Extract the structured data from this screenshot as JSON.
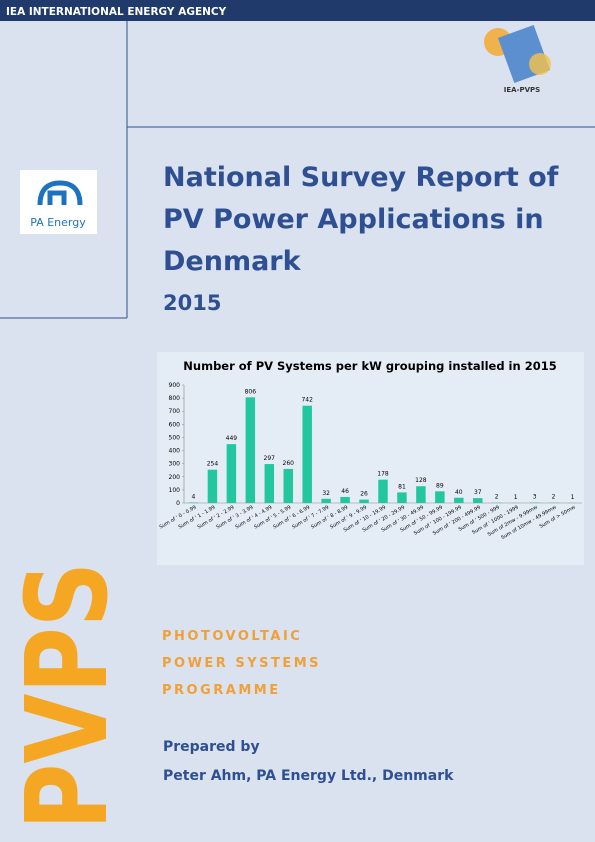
{
  "header": {
    "agency": "IEA INTERNATIONAL ENERGY AGENCY",
    "logo_text": "IEA-PVPS",
    "partner_logo": "PA Energy"
  },
  "title": {
    "lines": [
      "National Survey Report of",
      "PV Power Applications in",
      "Denmark"
    ],
    "year": "2015"
  },
  "chart_data": {
    "type": "bar",
    "title": "Number of PV Systems per kW grouping installed in 2015",
    "categories": [
      "Sum of ' 0 - 0.99",
      "Sum of ' 1 - 1.99",
      "Sum of ' 2 - 2.99",
      "Sum of ' 3 - 3.99",
      "Sum of ' 4 - 4.99",
      "Sum of ' 5 - 5.99",
      "Sum of ' 6 - 6.99",
      "Sum of ' 7 - 7.99",
      "Sum of ' 8 - 8.99",
      "Sum of ' 9 - 9.99",
      "Sum of ' 10 - 19.99",
      "Sum of ' 20 - 29.99",
      "Sum of ' 30 - 49.99",
      "Sum of ' 50 - 99.99",
      "Sum of ' 100 - 199.99",
      "Sum of ' 200 - 499.99",
      "Sum of ' 500 - 999",
      "Sum of ' 1000 - 1999",
      "Sum of 2mw - 9.99mw",
      "Sum of 10mw - 49.99mw",
      "Sum of > 50mw"
    ],
    "values": [
      4,
      254,
      449,
      806,
      297,
      260,
      742,
      32,
      46,
      26,
      178,
      81,
      128,
      89,
      40,
      37,
      2,
      1,
      3,
      2,
      1
    ],
    "color": "#22c7a0",
    "ylim": [
      0,
      900
    ],
    "yticks": [
      0,
      100,
      200,
      300,
      400,
      500,
      600,
      700,
      800,
      900
    ],
    "grid": false
  },
  "programme": [
    "PHOTOVOLTAIC",
    "POWER SYSTEMS",
    "PROGRAMME"
  ],
  "side_text": "PVPS",
  "prepared": {
    "label": "Prepared by",
    "author": "Peter Ahm, PA Energy Ltd., Denmark"
  }
}
